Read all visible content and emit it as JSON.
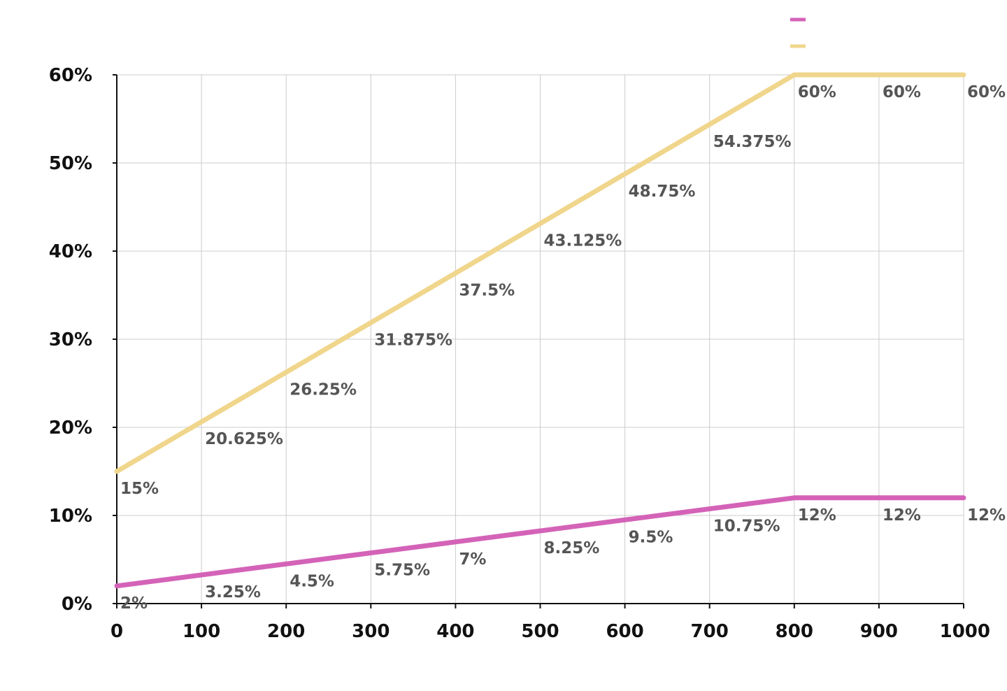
{
  "chart_data": {
    "type": "line",
    "title": "",
    "xlabel": "",
    "ylabel": "",
    "x": [
      0,
      100,
      200,
      300,
      400,
      500,
      600,
      700,
      800,
      900,
      1000
    ],
    "x_tick_labels": [
      "0",
      "100",
      "200",
      "300",
      "400",
      "500",
      "600",
      "700",
      "800",
      "900",
      "1000"
    ],
    "y_tick_values": [
      0,
      10,
      20,
      30,
      40,
      50,
      60
    ],
    "y_tick_labels": [
      "0%",
      "10%",
      "20%",
      "30%",
      "40%",
      "50%",
      "60%"
    ],
    "xlim": [
      0,
      1000
    ],
    "ylim": [
      0,
      60
    ],
    "grid": true,
    "legend_position": "top-right",
    "series": [
      {
        "name": "",
        "color": "#d463b8",
        "values": [
          2,
          3.25,
          4.5,
          5.75,
          7,
          8.25,
          9.5,
          10.75,
          12,
          12,
          12
        ],
        "labels": [
          "2%",
          "3.25%",
          "4.5%",
          "5.75%",
          "7%",
          "8.25%",
          "9.5%",
          "10.75%",
          "12%",
          "12%",
          "12%"
        ]
      },
      {
        "name": "",
        "color": "#f0d68c",
        "values": [
          15,
          20.625,
          26.25,
          31.875,
          37.5,
          43.125,
          48.75,
          54.375,
          60,
          60,
          60
        ],
        "labels": [
          "15%",
          "20.625%",
          "26.25%",
          "31.875%",
          "37.5%",
          "43.125%",
          "48.75%",
          "54.375%",
          "60%",
          "60%",
          "60%"
        ]
      }
    ]
  }
}
